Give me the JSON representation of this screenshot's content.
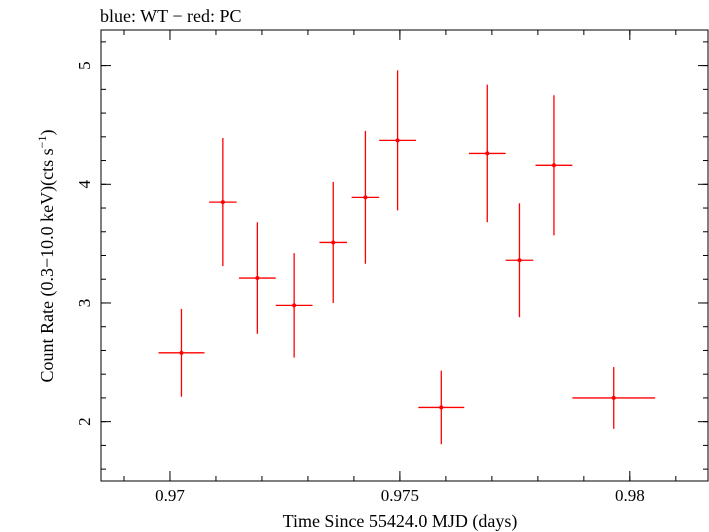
{
  "chart_data": {
    "type": "scatter",
    "title": "blue: WT − red: PC",
    "xlabel": "Time Since 55424.0 MJD (days)",
    "ylabel_main": "Count Rate (0.3−10.0 keV)(cts s",
    "ylabel_sup": "−1",
    "ylabel_end": ")",
    "xlim": [
      0.9685,
      0.9817
    ],
    "ylim": [
      1.5,
      5.3
    ],
    "x_ticks": [
      {
        "value": 0.97,
        "label": "0.97"
      },
      {
        "value": 0.975,
        "label": "0.975"
      },
      {
        "value": 0.98,
        "label": "0.98"
      }
    ],
    "x_minor_step": 0.001,
    "y_ticks": [
      {
        "value": 2,
        "label": "2"
      },
      {
        "value": 3,
        "label": "3"
      },
      {
        "value": 4,
        "label": "4"
      },
      {
        "value": 5,
        "label": "5"
      }
    ],
    "y_minor_step": 0.2,
    "grid": false,
    "series": [
      {
        "color": "#ff0000",
        "points": [
          {
            "x": 0.97025,
            "xerr": 0.0005,
            "y": 2.58,
            "yerr": 0.37
          },
          {
            "x": 0.97115,
            "xerr": 0.0003,
            "y": 3.85,
            "yerr": 0.54
          },
          {
            "x": 0.9719,
            "xerr": 0.0004,
            "y": 3.21,
            "yerr": 0.47
          },
          {
            "x": 0.9727,
            "xerr": 0.0004,
            "y": 2.98,
            "yerr": 0.44
          },
          {
            "x": 0.97355,
            "xerr": 0.0003,
            "y": 3.51,
            "yerr": 0.51
          },
          {
            "x": 0.97425,
            "xerr": 0.0003,
            "y": 3.89,
            "yerr": 0.56
          },
          {
            "x": 0.97495,
            "xerr": 0.0004,
            "y": 4.37,
            "yerr": 0.59
          },
          {
            "x": 0.9759,
            "xerr": 0.0005,
            "y": 2.12,
            "yerr": 0.31
          },
          {
            "x": 0.9769,
            "xerr": 0.0004,
            "y": 4.26,
            "yerr": 0.58
          },
          {
            "x": 0.9776,
            "xerr": 0.0003,
            "y": 3.36,
            "yerr": 0.48
          },
          {
            "x": 0.97835,
            "xerr": 0.0004,
            "y": 4.16,
            "yerr": 0.59
          },
          {
            "x": 0.97965,
            "xerr": 0.0009,
            "y": 2.2,
            "yerr": 0.26
          }
        ]
      }
    ]
  }
}
